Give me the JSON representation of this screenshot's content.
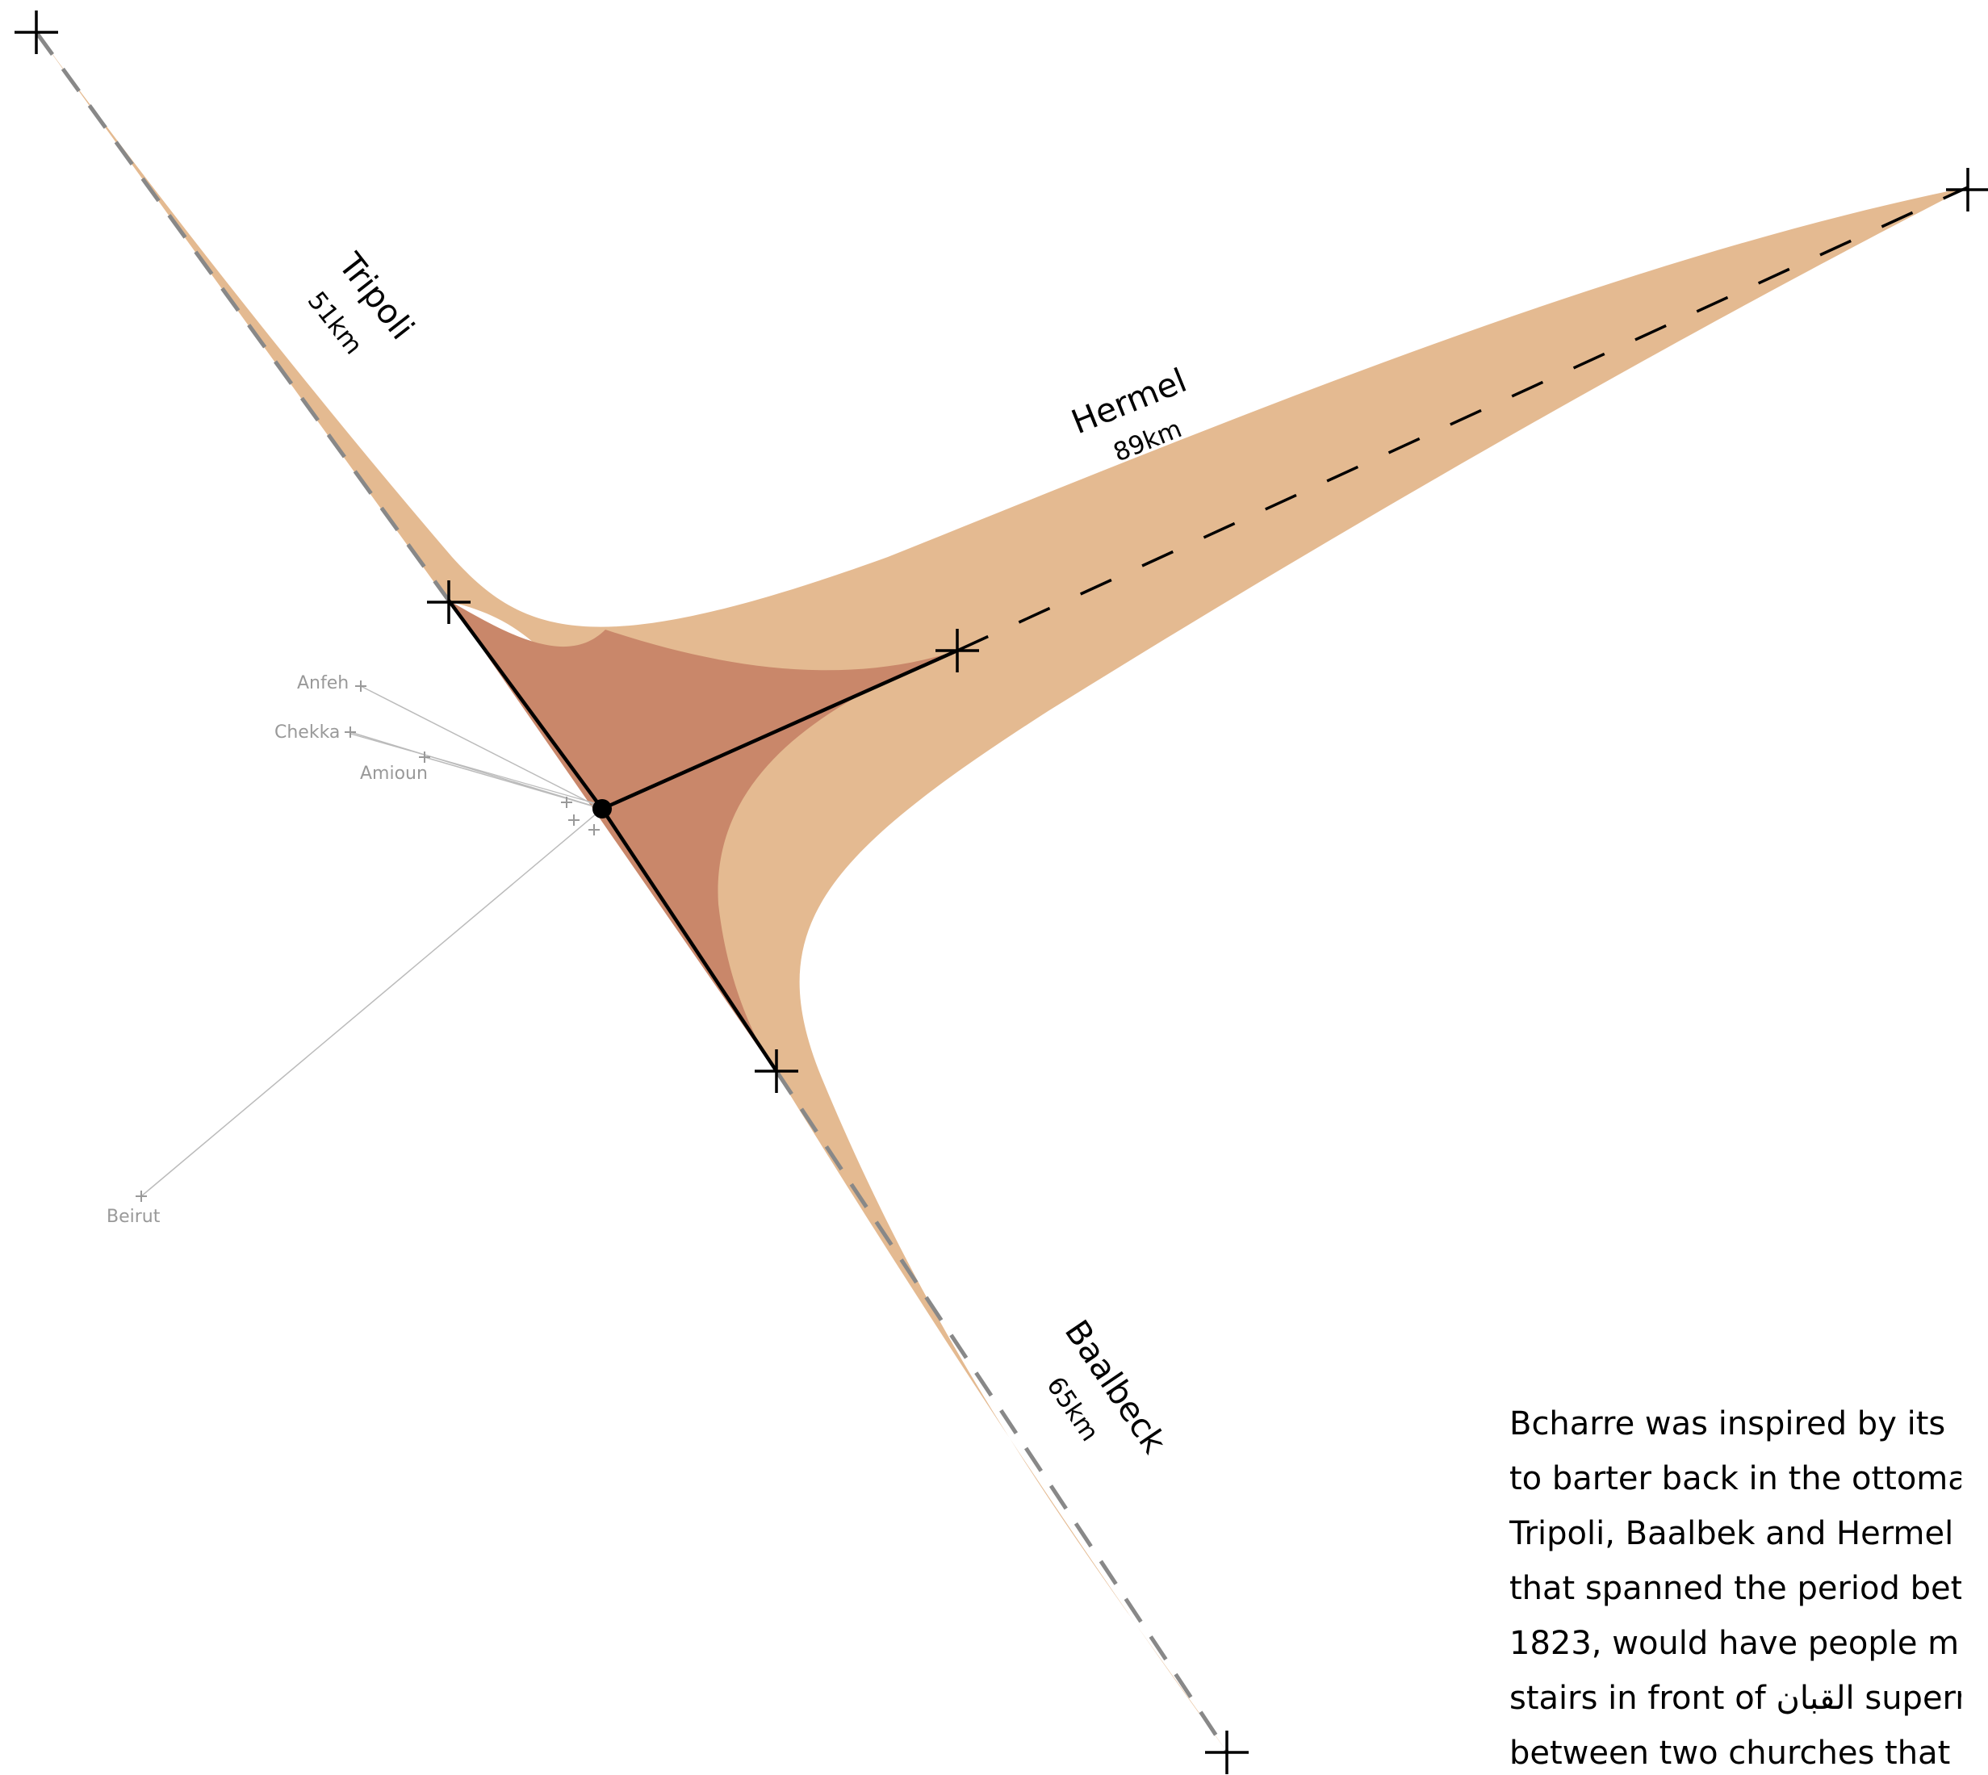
{
  "colors": {
    "outer_fill": "#E4BA91",
    "inner_fill": "#C9876A",
    "ink": "#000000",
    "dash_grey": "#888888",
    "village_grey": "#999999",
    "village_line": "#BBBBBB"
  },
  "routes": [
    {
      "id": "tripoli",
      "name": "Tripoli",
      "distance": "51km"
    },
    {
      "id": "hermel",
      "name": "Hermel",
      "distance": "89km"
    },
    {
      "id": "baalbeck",
      "name": "Baalbeck",
      "distance": "65km"
    }
  ],
  "villages": [
    {
      "id": "anfeh",
      "name": "Anfeh"
    },
    {
      "id": "chekka",
      "name": "Chekka"
    },
    {
      "id": "amioun",
      "name": "Amioun"
    },
    {
      "id": "beirut",
      "name": "Beirut"
    }
  ],
  "story": {
    "lines": [
      "Bcharre was inspired by its",
      "to barter back in the ottoma",
      "Tripoli, Baalbek and Hermel",
      "that spanned the period bet",
      "1823, would have people m",
      "stairs in front of القبان supern",
      "between two churches that"
    ]
  }
}
